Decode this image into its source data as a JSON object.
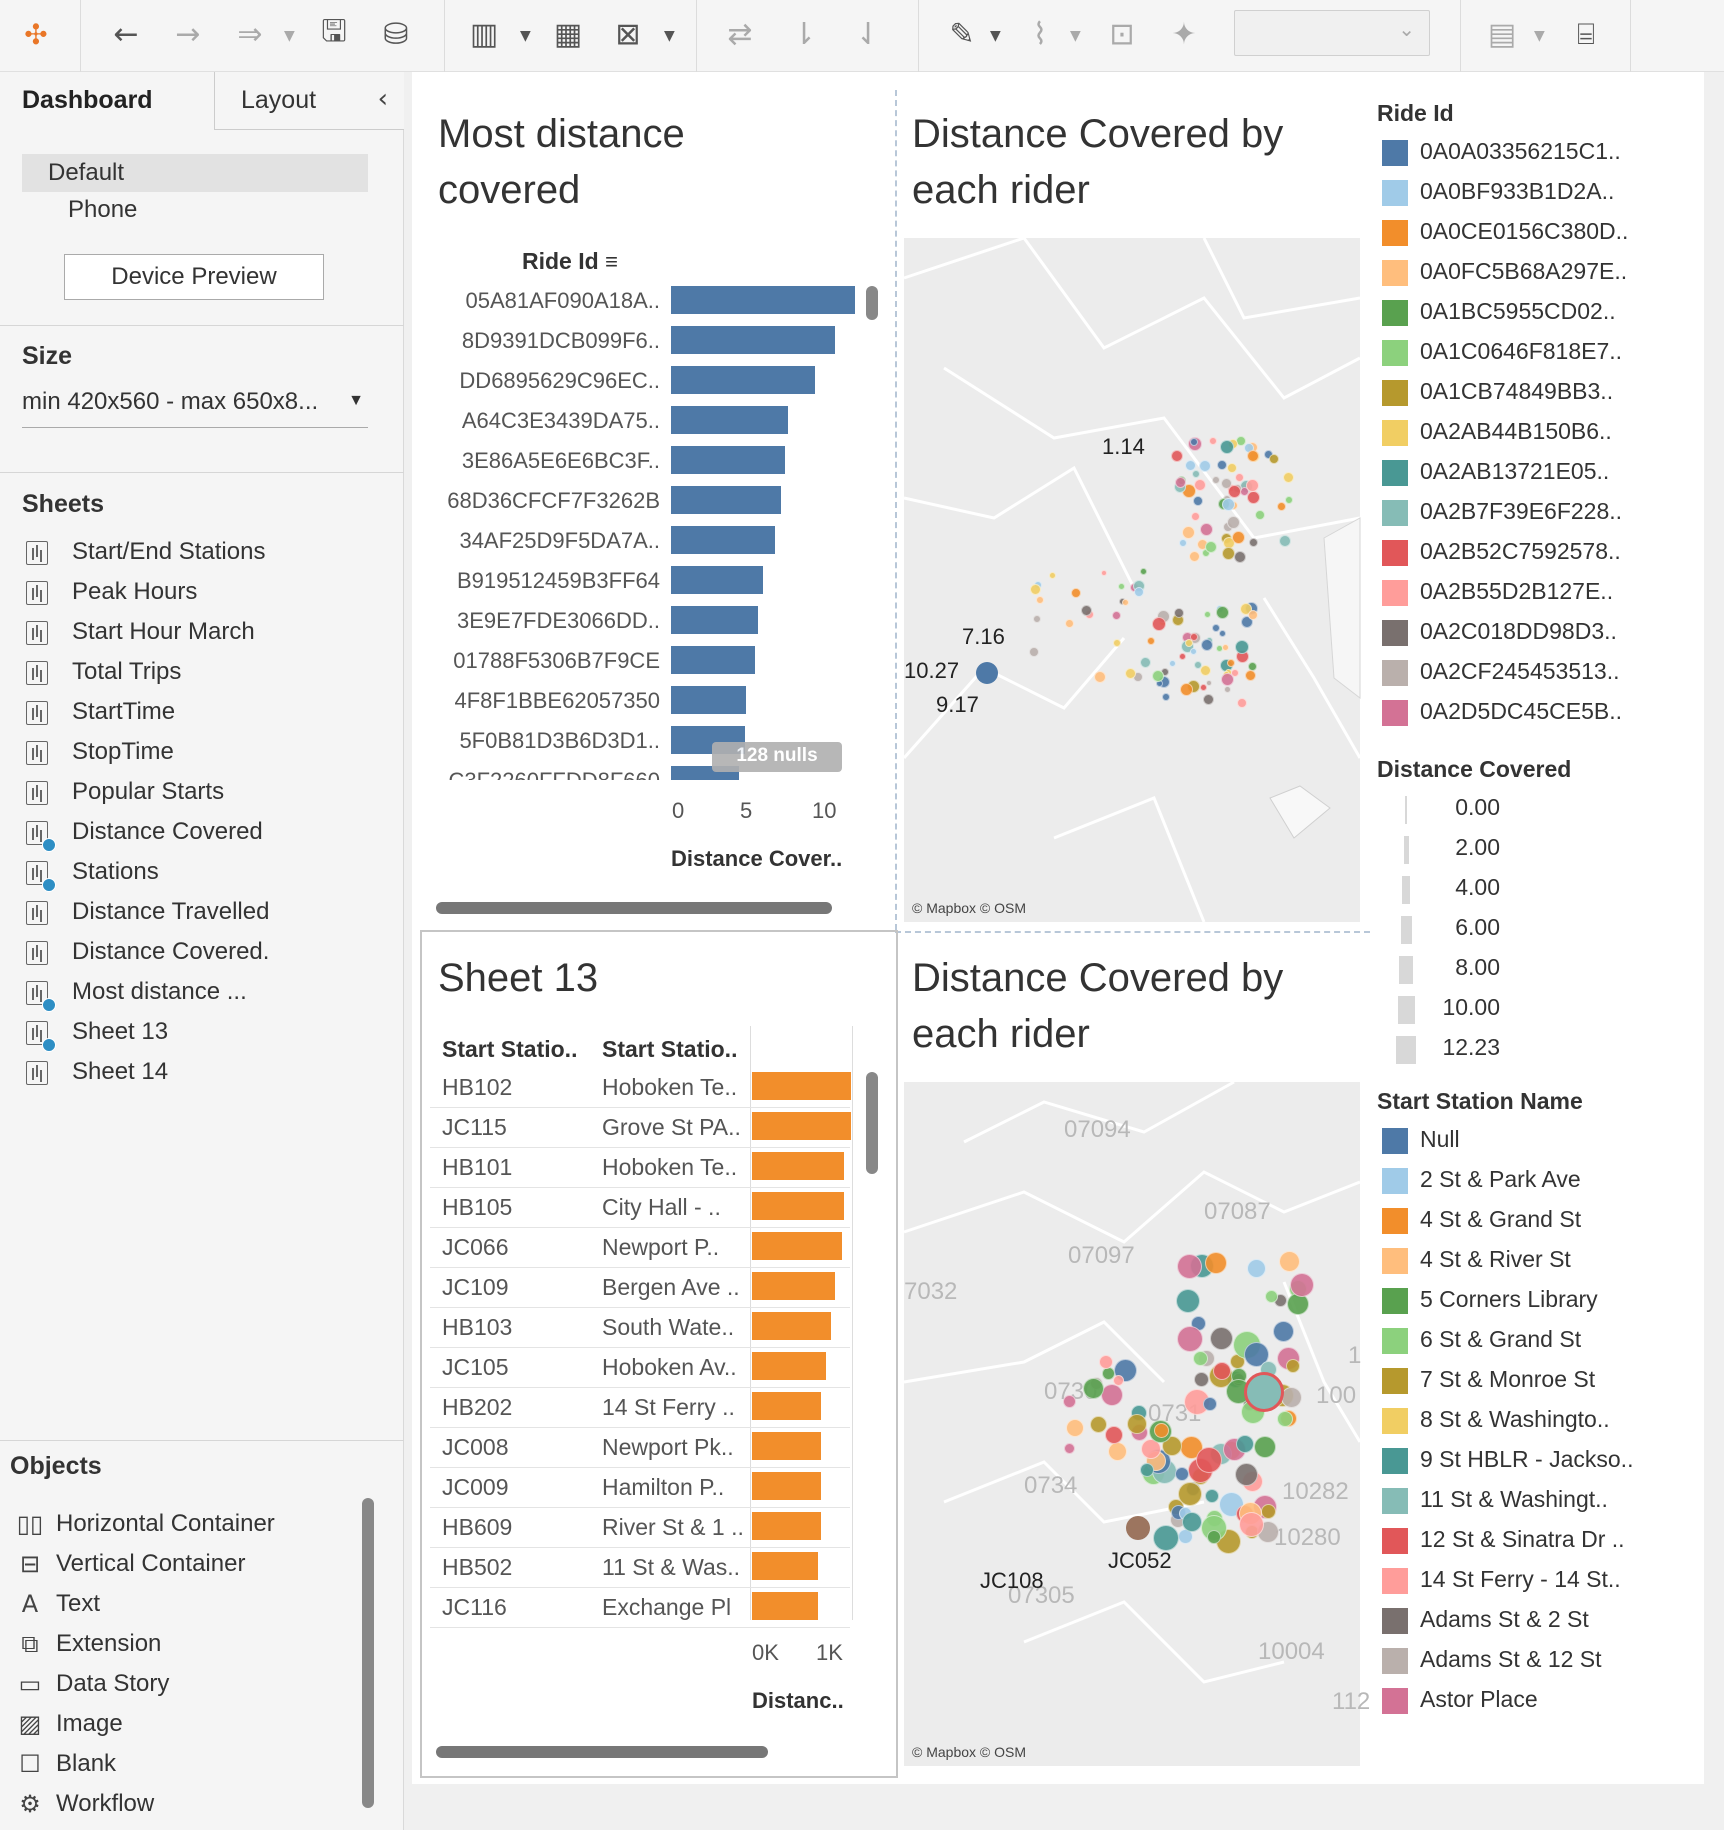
{
  "toolbar": {
    "icons": [
      "tableau-logo-icon",
      "undo-icon",
      "redo-icon",
      "replay-icon",
      "save-icon",
      "new-data-source-icon",
      "new-worksheet-icon",
      "duplicate-sheet-icon",
      "clear-sheet-icon",
      "swap-rows-columns-icon",
      "sort-ascending-icon",
      "sort-descending-icon",
      "highlight-icon",
      "group-members-icon",
      "show-mark-labels-icon",
      "pin-icon",
      "fit-select",
      "show-me-icon",
      "presentation-mode-icon"
    ]
  },
  "left_panel": {
    "tabs": {
      "dashboard": "Dashboard",
      "layout": "Layout"
    },
    "devices": {
      "default": "Default",
      "phone": "Phone",
      "preview_button": "Device Preview"
    },
    "size": {
      "title": "Size",
      "value": "min 420x560 - max 650x8..."
    },
    "sheets": {
      "title": "Sheets",
      "items": [
        {
          "label": "Start/End Stations",
          "used": false
        },
        {
          "label": "Peak Hours",
          "used": false
        },
        {
          "label": "Start Hour March",
          "used": false
        },
        {
          "label": "Total Trips",
          "used": false
        },
        {
          "label": "StartTime",
          "used": false
        },
        {
          "label": "StopTime",
          "used": false
        },
        {
          "label": "Popular Starts",
          "used": false
        },
        {
          "label": "Distance Covered",
          "used": true
        },
        {
          "label": "Stations",
          "used": true
        },
        {
          "label": "Distance Travelled",
          "used": false
        },
        {
          "label": "Distance Covered.",
          "used": false
        },
        {
          "label": "Most distance ...",
          "used": true
        },
        {
          "label": "Sheet 13",
          "used": true
        },
        {
          "label": "Sheet 14",
          "used": false
        }
      ]
    },
    "objects": {
      "title": "Objects",
      "items": [
        {
          "label": "Horizontal Container",
          "icon": "horizontal-container-icon",
          "glyph": "▯▯"
        },
        {
          "label": "Vertical Container",
          "icon": "vertical-container-icon",
          "glyph": "⊟"
        },
        {
          "label": "Text",
          "icon": "text-icon",
          "glyph": "A"
        },
        {
          "label": "Extension",
          "icon": "extension-icon",
          "glyph": "⧉"
        },
        {
          "label": "Data Story",
          "icon": "data-story-icon",
          "glyph": "▭"
        },
        {
          "label": "Image",
          "icon": "image-icon",
          "glyph": "▨"
        },
        {
          "label": "Blank",
          "icon": "blank-icon",
          "glyph": "☐"
        },
        {
          "label": "Workflow",
          "icon": "workflow-icon",
          "glyph": "⚙"
        }
      ]
    }
  },
  "dashboard": {
    "most_distance": {
      "title_line1": "Most distance",
      "title_line2": "covered",
      "header": "Ride Id",
      "nulls_badge": "128 nulls",
      "axis_title": "Distance Cover..",
      "ticks": [
        "0",
        "5",
        "10"
      ],
      "color": "#4e79a7"
    },
    "map_top": {
      "title_line1": "Distance Covered by",
      "title_line2": "each rider",
      "labels": [
        "1.14",
        "7.16",
        "10.27",
        "9.17"
      ],
      "attribution": "© Mapbox © OSM"
    },
    "sheet13": {
      "title": "Sheet 13",
      "headers": [
        "Start Statio..",
        "Start Statio.."
      ],
      "rows": [
        {
          "id": "HB102",
          "name": "Hoboken Te.."
        },
        {
          "id": "JC115",
          "name": "Grove St PA.."
        },
        {
          "id": "HB101",
          "name": "Hoboken Te.."
        },
        {
          "id": "HB105",
          "name": "City Hall - .."
        },
        {
          "id": "JC066",
          "name": "Newport P.."
        },
        {
          "id": "JC109",
          "name": "Bergen Ave .."
        },
        {
          "id": "HB103",
          "name": "South Wate.."
        },
        {
          "id": "JC105",
          "name": "Hoboken Av.."
        },
        {
          "id": "HB202",
          "name": "14 St Ferry .."
        },
        {
          "id": "JC008",
          "name": "Newport Pk.."
        },
        {
          "id": "JC009",
          "name": "Hamilton P.."
        },
        {
          "id": "HB609",
          "name": "River St & 1 .."
        },
        {
          "id": "HB502",
          "name": "11 St & Was.."
        },
        {
          "id": "JC116",
          "name": "Exchange Pl"
        }
      ],
      "ticks": [
        "0K",
        "1K"
      ],
      "axis_title": "Distanc..",
      "color": "#f28e2b"
    },
    "map_bottom": {
      "title_line1": "Distance Covered by",
      "title_line2": "each rider",
      "labels": [
        "JC108",
        "JC052"
      ],
      "zips": [
        "07094",
        "07087",
        "07097",
        "7032",
        "0730",
        "0731",
        "0734",
        "1",
        "100",
        "10282",
        "10280",
        "10004",
        "07305",
        "112"
      ],
      "attribution": "© Mapbox © OSM"
    },
    "legend_ride": {
      "title": "Ride Id",
      "items": [
        {
          "label": "0A0A03356215C1..",
          "color": "#4e79a7"
        },
        {
          "label": "0A0BF933B1D2A..",
          "color": "#a0cbe8"
        },
        {
          "label": "0A0CE0156C380D..",
          "color": "#f28e2b"
        },
        {
          "label": "0A0FC5B68A297E..",
          "color": "#ffbe7d"
        },
        {
          "label": "0A1BC5955CD02..",
          "color": "#59a14f"
        },
        {
          "label": "0A1C0646F818E7..",
          "color": "#8cd17d"
        },
        {
          "label": "0A1CB74849BB3..",
          "color": "#b6992d"
        },
        {
          "label": "0A2AB44B150B6..",
          "color": "#f1ce63"
        },
        {
          "label": "0A2AB13721E05..",
          "color": "#499894"
        },
        {
          "label": "0A2B7F39E6F228..",
          "color": "#86bcb6"
        },
        {
          "label": "0A2B52C7592578..",
          "color": "#e15759"
        },
        {
          "label": "0A2B55D2B127E..",
          "color": "#ff9d9a"
        },
        {
          "label": "0A2C018DD98D3..",
          "color": "#79706e"
        },
        {
          "label": "0A2CF245453513..",
          "color": "#bab0ac"
        },
        {
          "label": "0A2D5DC45CE5B..",
          "color": "#d37295"
        }
      ]
    },
    "legend_distance": {
      "title": "Distance Covered",
      "items": [
        "0.00",
        "2.00",
        "4.00",
        "6.00",
        "8.00",
        "10.00",
        "12.23"
      ]
    },
    "legend_station": {
      "title": "Start Station Name",
      "items": [
        {
          "label": "Null",
          "color": "#4e79a7"
        },
        {
          "label": "2 St & Park Ave",
          "color": "#a0cbe8"
        },
        {
          "label": "4 St & Grand St",
          "color": "#f28e2b"
        },
        {
          "label": "4 St & River St",
          "color": "#ffbe7d"
        },
        {
          "label": "5 Corners Library",
          "color": "#59a14f"
        },
        {
          "label": "6 St & Grand St",
          "color": "#8cd17d"
        },
        {
          "label": "7 St & Monroe St",
          "color": "#b6992d"
        },
        {
          "label": "8 St & Washingto..",
          "color": "#f1ce63"
        },
        {
          "label": "9 St HBLR - Jackso..",
          "color": "#499894"
        },
        {
          "label": "11 St & Washingt..",
          "color": "#86bcb6"
        },
        {
          "label": "12 St & Sinatra Dr ..",
          "color": "#e15759"
        },
        {
          "label": "14 St Ferry - 14 St..",
          "color": "#ff9d9a"
        },
        {
          "label": "Adams St & 2 St",
          "color": "#79706e"
        },
        {
          "label": "Adams St & 12 St",
          "color": "#bab0ac"
        },
        {
          "label": "Astor Place",
          "color": "#d37295"
        }
      ]
    }
  },
  "chart_data": [
    {
      "type": "bar",
      "orientation": "horizontal",
      "title": "Most distance covered",
      "ylabel": "Ride Id",
      "xlabel": "Distance Cover..",
      "xlim": [
        0,
        12.5
      ],
      "categories": [
        "05A81AF090A18A..",
        "8D9391DCB099F6..",
        "DD6895629C96EC..",
        "A64C3E3439DA75..",
        "3E86A5E6E6BC3F..",
        "68D36CFCF7F3262B",
        "34AF25D9F5DA7A..",
        "B919512459B3FF64",
        "3E9E7FDE3066DD..",
        "01788F5306B7F9CE",
        "4F8F1BBE62057350",
        "5F0B81D3B6D3D1..",
        "C3F2260FFDD8F660"
      ],
      "values": [
        12.23,
        10.9,
        9.6,
        7.8,
        7.6,
        7.3,
        6.9,
        6.1,
        5.8,
        5.6,
        5.0,
        4.9,
        4.5
      ]
    },
    {
      "type": "bar",
      "orientation": "horizontal",
      "title": "Sheet 13",
      "xlabel": "Distanc..",
      "xlim": [
        0,
        1400
      ],
      "categories": [
        "HB102",
        "JC115",
        "HB101",
        "HB105",
        "JC066",
        "JC109",
        "HB103",
        "JC105",
        "HB202",
        "JC008",
        "JC009",
        "HB609",
        "HB502",
        "JC116"
      ],
      "values": [
        1290,
        1290,
        1200,
        1190,
        1170,
        1080,
        1030,
        960,
        900,
        900,
        900,
        900,
        860,
        860
      ]
    }
  ]
}
